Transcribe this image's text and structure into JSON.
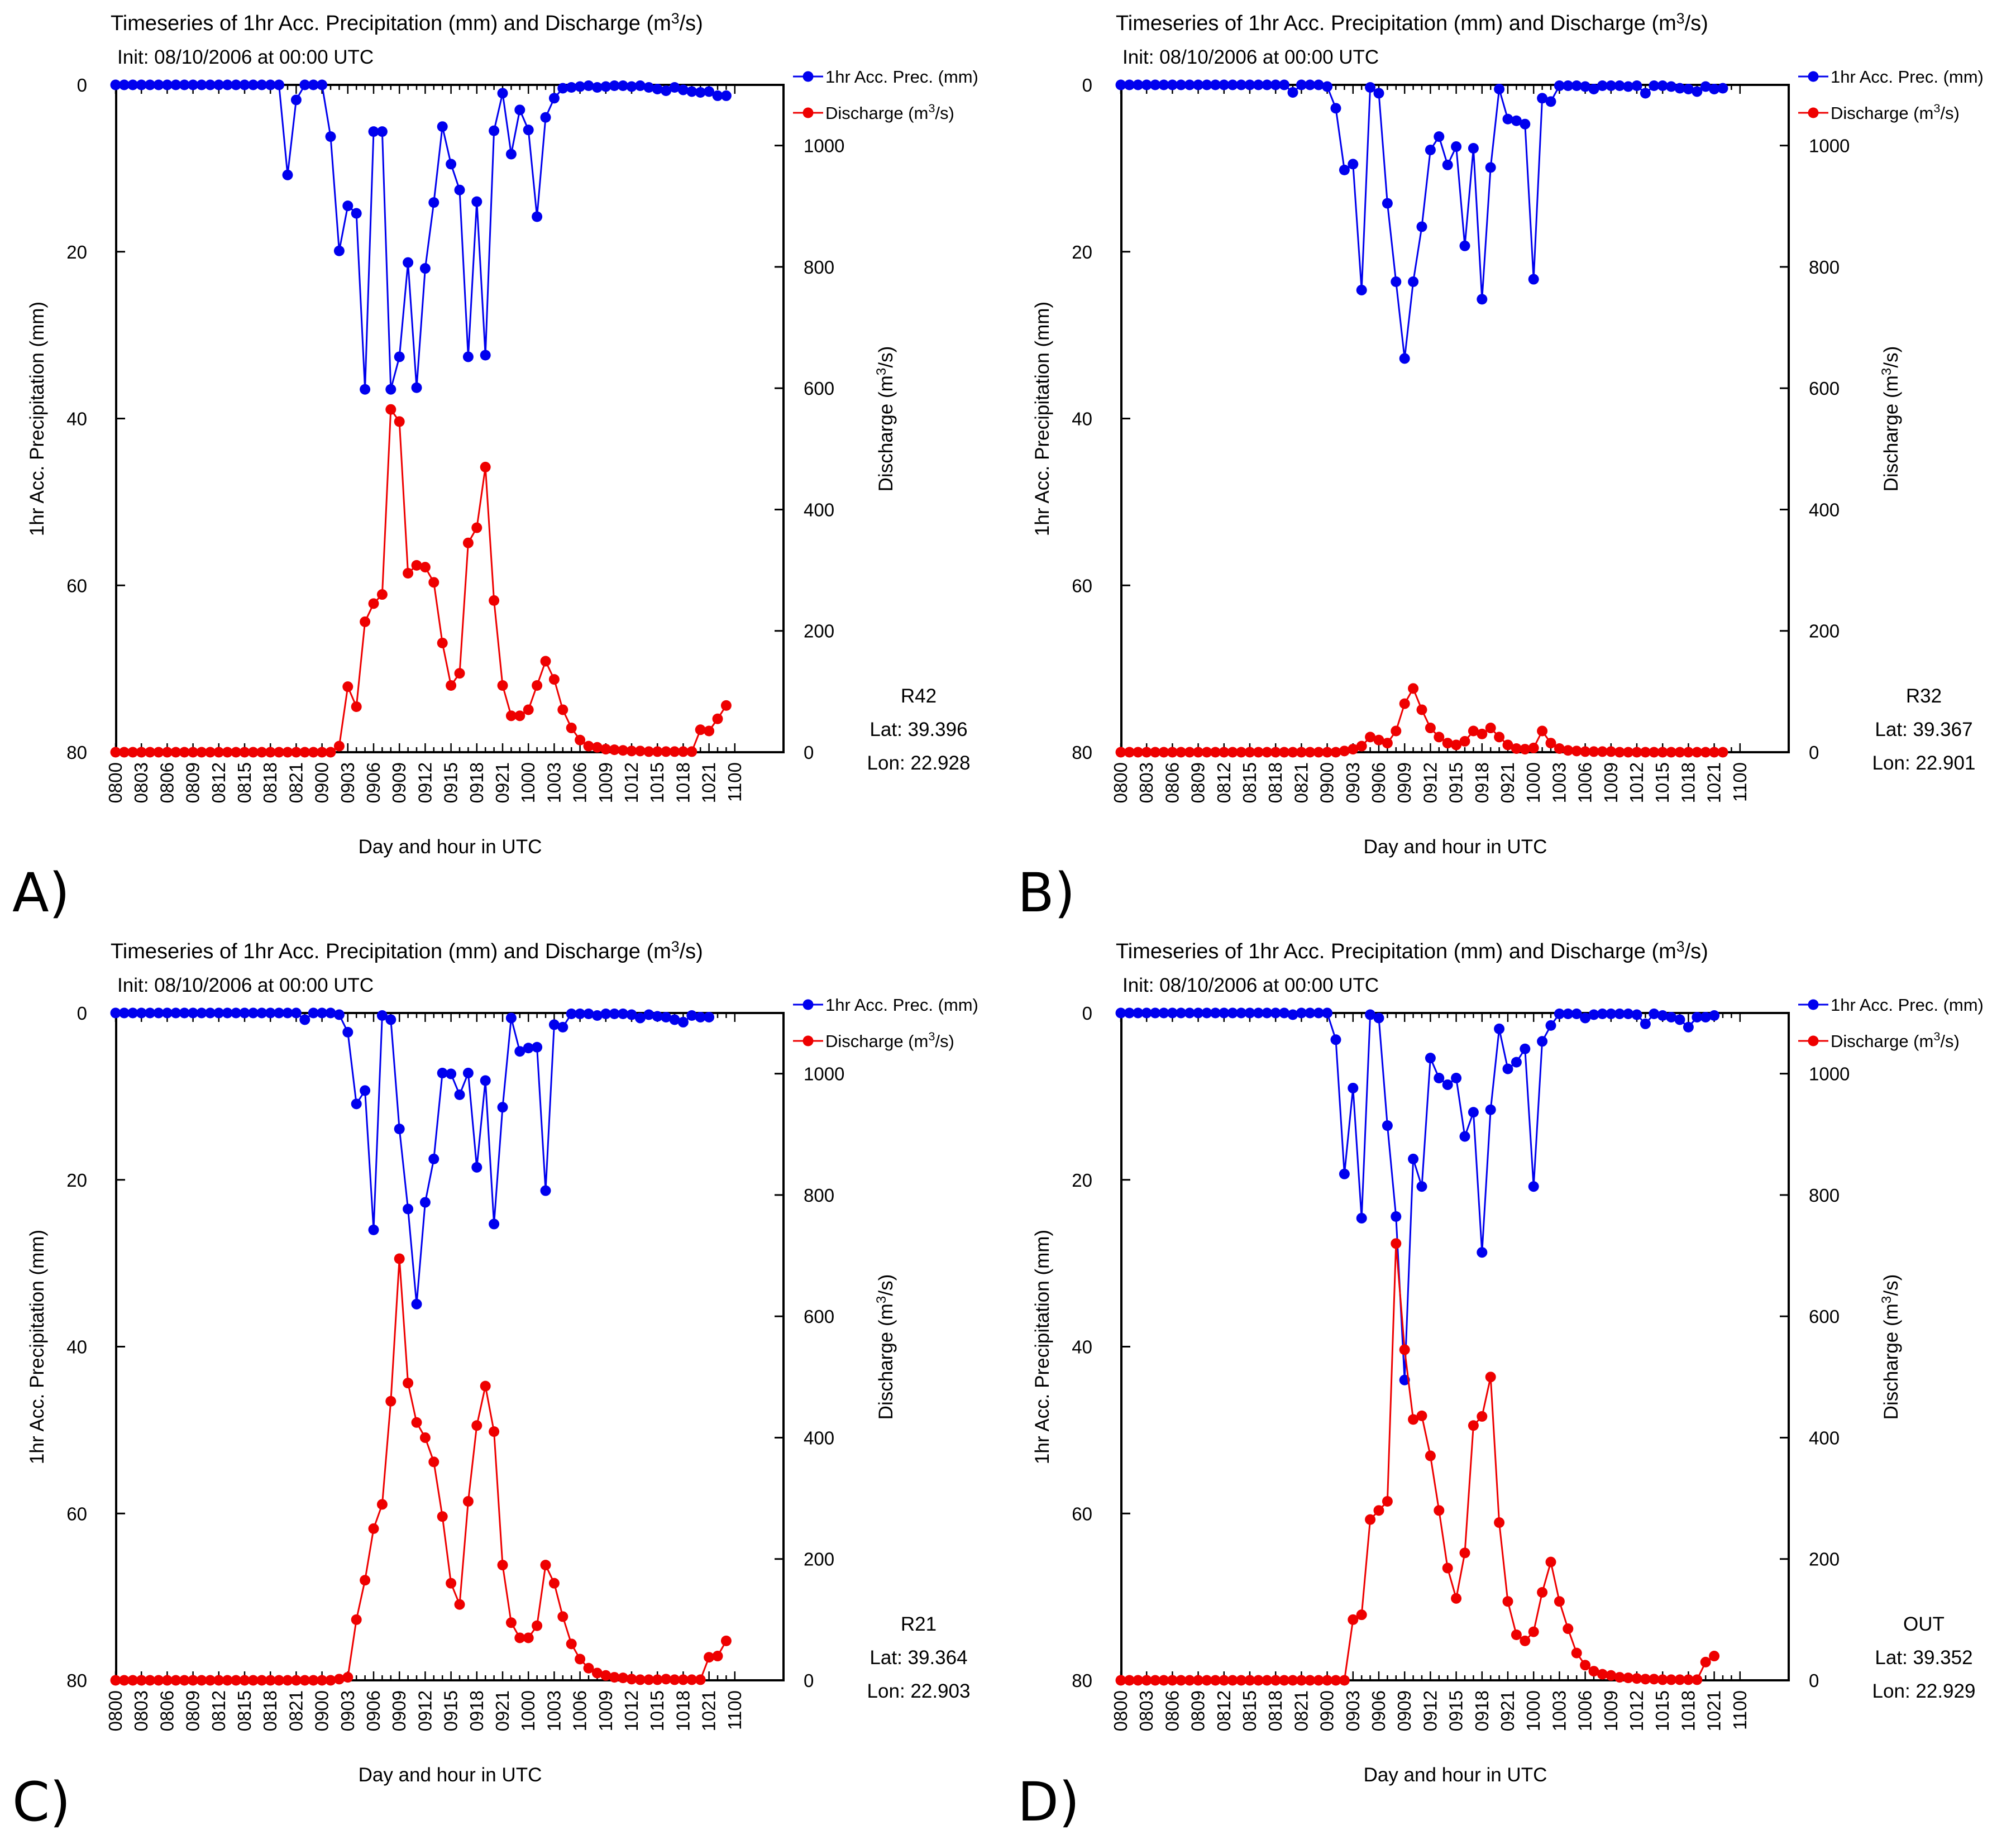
{
  "figure": {
    "panel_letters": [
      "A)",
      "B)",
      "C)",
      "D)"
    ]
  },
  "chart_data": [
    {
      "type": "line",
      "panel": "A)",
      "title": "Timeseries of 1hr Acc. Precipitation (mm) and Discharge (m3/s)",
      "subtitle": "Init: 08/10/2006 at 00:00 UTC",
      "xlabel": "Day and hour in UTC",
      "ylabel_left": "1hr Acc. Precipitation (mm)",
      "ylabel_right": "Discharge (m3/s)",
      "ylim_left": [
        80,
        0
      ],
      "ylim_right": [
        0,
        1100
      ],
      "yticks_left": [
        0,
        20,
        40,
        60,
        80
      ],
      "yticks_right": [
        0,
        200,
        400,
        600,
        800,
        1000
      ],
      "x_tick_labels": [
        "0800",
        "0803",
        "0806",
        "0809",
        "0812",
        "0815",
        "0818",
        "0821",
        "0900",
        "0903",
        "0906",
        "0909",
        "0912",
        "0915",
        "0918",
        "0921",
        "1000",
        "1003",
        "1006",
        "1009",
        "1012",
        "1015",
        "1018",
        "1021",
        "1100"
      ],
      "legend": [
        "1hr Acc. Prec. (mm)",
        "Discharge (m3/s)"
      ],
      "station": "R42",
      "lat": "Lat: 39.396",
      "lon": "Lon: 22.928",
      "series": [
        {
          "name": "1hr Acc. Prec. (mm)",
          "color": "#0000ee",
          "axis": "left",
          "values": [
            0,
            0,
            0,
            0,
            0,
            0,
            0,
            0,
            0,
            0,
            0,
            0,
            0,
            0,
            0,
            0,
            0,
            0,
            0,
            0,
            10.8,
            1.8,
            0,
            0,
            0,
            6.2,
            19.9,
            14.5,
            15.4,
            36.5,
            5.6,
            5.6,
            36.5,
            32.6,
            21.3,
            36.3,
            22,
            14.1,
            5,
            9.5,
            12.6,
            32.6,
            14,
            32.4,
            5.5,
            1,
            8.3,
            3,
            5.4,
            15.8,
            3.9,
            1.6,
            0.4,
            0.3,
            0.2,
            0.1,
            0.3,
            0.2,
            0.1,
            0.1,
            0.2,
            0.1,
            0.3,
            0.5,
            0.7,
            0.3,
            0.6,
            0.8,
            0.9,
            0.8,
            1.3,
            1.3
          ]
        },
        {
          "name": "Discharge (m3/s)",
          "color": "#ee0000",
          "axis": "right",
          "values": [
            0,
            0,
            0,
            0,
            0,
            0,
            0,
            0,
            0,
            0,
            0,
            0,
            0,
            0,
            0,
            0,
            0,
            0,
            0,
            0,
            0,
            0,
            0,
            0,
            0,
            0,
            10,
            108,
            75,
            215,
            245,
            260,
            565,
            545,
            295,
            308,
            305,
            280,
            180,
            110,
            130,
            345,
            370,
            470,
            250,
            110,
            60,
            60,
            70,
            110,
            150,
            120,
            70,
            40,
            20,
            10,
            8,
            5,
            4,
            3,
            2,
            2,
            1,
            1,
            1,
            1,
            1,
            1,
            37,
            35,
            55,
            77
          ]
        }
      ]
    },
    {
      "type": "line",
      "panel": "B)",
      "title": "Timeseries of 1hr Acc. Precipitation (mm) and Discharge (m3/s)",
      "subtitle": "Init: 08/10/2006 at 00:00 UTC",
      "xlabel": "Day and hour in UTC",
      "ylabel_left": "1hr Acc. Precipitation (mm)",
      "ylabel_right": "Discharge (m3/s)",
      "ylim_left": [
        80,
        0
      ],
      "ylim_right": [
        0,
        1100
      ],
      "yticks_left": [
        0,
        20,
        40,
        60,
        80
      ],
      "yticks_right": [
        0,
        200,
        400,
        600,
        800,
        1000
      ],
      "x_tick_labels": [
        "0800",
        "0803",
        "0806",
        "0809",
        "0812",
        "0815",
        "0818",
        "0821",
        "0900",
        "0903",
        "0906",
        "0909",
        "0912",
        "0915",
        "0918",
        "0921",
        "1000",
        "1003",
        "1006",
        "1009",
        "1012",
        "1015",
        "1018",
        "1021",
        "1100"
      ],
      "legend": [
        "1hr Acc. Prec. (mm)",
        "Discharge (m3/s)"
      ],
      "station": "R32",
      "lat": "Lat: 39.367",
      "lon": "Lon: 22.901",
      "series": [
        {
          "name": "1hr Acc. Prec. (mm)",
          "color": "#0000ee",
          "axis": "left",
          "values": [
            0,
            0,
            0,
            0,
            0,
            0,
            0,
            0,
            0,
            0,
            0,
            0,
            0,
            0,
            0,
            0,
            0,
            0,
            0,
            0,
            0.9,
            0,
            0,
            0,
            0.2,
            2.8,
            10.2,
            9.5,
            24.6,
            0.3,
            1,
            14.2,
            23.6,
            32.8,
            23.6,
            17,
            7.8,
            6.2,
            9.6,
            7.4,
            19.3,
            7.6,
            25.7,
            9.9,
            0.5,
            4.1,
            4.3,
            4.7,
            23.3,
            1.6,
            2,
            0.1,
            0.1,
            0.1,
            0.2,
            0.5,
            0.1,
            0.1,
            0.1,
            0.2,
            0.1,
            1,
            0.1,
            0.1,
            0.2,
            0.4,
            0.5,
            0.8,
            0.2,
            0.5,
            0.4
          ]
        },
        {
          "name": "Discharge (m3/s)",
          "color": "#ee0000",
          "axis": "right",
          "values": [
            0,
            0,
            0,
            0,
            0,
            0,
            0,
            0,
            0,
            0,
            0,
            0,
            0,
            0,
            0,
            0,
            0,
            0,
            0,
            0,
            0,
            0,
            0,
            0,
            0,
            0,
            2,
            5,
            10,
            25,
            20,
            15,
            35,
            80,
            105,
            70,
            40,
            25,
            15,
            12,
            18,
            35,
            30,
            40,
            25,
            12,
            6,
            5,
            7,
            35,
            15,
            6,
            3,
            2,
            1,
            1,
            1,
            1,
            0,
            0,
            0,
            0,
            0,
            0,
            0,
            0,
            0,
            0,
            0,
            0,
            0
          ]
        }
      ]
    },
    {
      "type": "line",
      "panel": "C)",
      "title": "Timeseries of 1hr Acc. Precipitation (mm) and Discharge (m3/s)",
      "subtitle": "Init: 08/10/2006 at 00:00 UTC",
      "xlabel": "Day and hour in UTC",
      "ylabel_left": "1hr Acc. Precipitation (mm)",
      "ylabel_right": "Discharge (m3/s)",
      "ylim_left": [
        80,
        0
      ],
      "ylim_right": [
        0,
        1100
      ],
      "yticks_left": [
        0,
        20,
        40,
        60,
        80
      ],
      "yticks_right": [
        0,
        200,
        400,
        600,
        800,
        1000
      ],
      "x_tick_labels": [
        "0800",
        "0803",
        "0806",
        "0809",
        "0812",
        "0815",
        "0818",
        "0821",
        "0900",
        "0903",
        "0906",
        "0909",
        "0912",
        "0915",
        "0918",
        "0921",
        "1000",
        "1003",
        "1006",
        "1009",
        "1012",
        "1015",
        "1018",
        "1021",
        "1100"
      ],
      "legend": [
        "1hr Acc. Prec. (mm)",
        "Discharge (m3/s)"
      ],
      "station": "R21",
      "lat": "Lat: 39.364",
      "lon": "Lon: 22.903",
      "series": [
        {
          "name": "1hr Acc. Prec. (mm)",
          "color": "#0000ee",
          "axis": "left",
          "values": [
            0,
            0,
            0,
            0,
            0,
            0,
            0,
            0,
            0,
            0,
            0,
            0,
            0,
            0,
            0,
            0,
            0,
            0,
            0,
            0,
            0,
            0,
            0.8,
            0,
            0,
            0,
            0.2,
            2.3,
            10.9,
            9.3,
            26,
            0.3,
            0.8,
            13.9,
            23.5,
            34.9,
            22.7,
            17.5,
            7.2,
            7.3,
            9.8,
            7.2,
            18.5,
            8.1,
            25.3,
            11.3,
            0.6,
            4.6,
            4.2,
            4.1,
            21.3,
            1.4,
            1.7,
            0.1,
            0.1,
            0.1,
            0.3,
            0.1,
            0.1,
            0.1,
            0.2,
            0.6,
            0.2,
            0.4,
            0.5,
            0.8,
            1.1,
            0.3,
            0.5,
            0.5
          ]
        },
        {
          "name": "Discharge (m3/s)",
          "color": "#ee0000",
          "axis": "right",
          "values": [
            0,
            0,
            0,
            0,
            0,
            0,
            0,
            0,
            0,
            0,
            0,
            0,
            0,
            0,
            0,
            0,
            0,
            0,
            0,
            0,
            0,
            0,
            0,
            0,
            0,
            0,
            2,
            5,
            100,
            165,
            250,
            290,
            460,
            695,
            490,
            425,
            400,
            360,
            270,
            160,
            125,
            295,
            420,
            485,
            410,
            190,
            95,
            70,
            70,
            90,
            190,
            160,
            105,
            60,
            35,
            20,
            12,
            8,
            5,
            4,
            2,
            1,
            1,
            1,
            2,
            1,
            1,
            1,
            1,
            38,
            40,
            65
          ]
        }
      ]
    },
    {
      "type": "line",
      "panel": "D)",
      "title": "Timeseries of 1hr Acc. Precipitation (mm) and Discharge (m3/s)",
      "subtitle": "Init: 08/10/2006 at 00:00 UTC",
      "xlabel": "Day and hour in UTC",
      "ylabel_left": "1hr Acc. Precipitation (mm)",
      "ylabel_right": "Discharge (m3/s)",
      "ylim_left": [
        80,
        0
      ],
      "ylim_right": [
        0,
        1100
      ],
      "yticks_left": [
        0,
        20,
        40,
        60,
        80
      ],
      "yticks_right": [
        0,
        200,
        400,
        600,
        800,
        1000
      ],
      "x_tick_labels": [
        "0800",
        "0803",
        "0806",
        "0809",
        "0812",
        "0815",
        "0818",
        "0821",
        "0900",
        "0903",
        "0906",
        "0909",
        "0912",
        "0915",
        "0918",
        "0921",
        "1000",
        "1003",
        "1006",
        "1009",
        "1012",
        "1015",
        "1018",
        "1021",
        "1100"
      ],
      "legend": [
        "1hr Acc. Prec. (mm)",
        "Discharge (m3/s)"
      ],
      "station": "OUT",
      "lat": "Lat: 39.352",
      "lon": "Lon: 22.929",
      "series": [
        {
          "name": "1hr Acc. Prec. (mm)",
          "color": "#0000ee",
          "axis": "left",
          "values": [
            0,
            0,
            0,
            0,
            0,
            0,
            0,
            0,
            0,
            0,
            0,
            0,
            0,
            0,
            0,
            0,
            0,
            0,
            0,
            0,
            0.2,
            0,
            0,
            0,
            0,
            3.2,
            19.3,
            9,
            24.6,
            0.2,
            0.6,
            13.5,
            24.4,
            44,
            17.5,
            20.8,
            5.4,
            7.8,
            8.6,
            7.8,
            14.8,
            11.9,
            28.7,
            11.6,
            1.9,
            6.7,
            5.9,
            4.3,
            20.8,
            3.4,
            1.5,
            0.1,
            0.1,
            0.1,
            0.6,
            0.2,
            0.1,
            0.1,
            0.1,
            0.1,
            0.2,
            1.3,
            0.1,
            0.3,
            0.5,
            0.8,
            1.7,
            0.5,
            0.5,
            0.3
          ]
        },
        {
          "name": "Discharge (m3/s)",
          "color": "#ee0000",
          "axis": "right",
          "values": [
            0,
            0,
            0,
            0,
            0,
            0,
            0,
            0,
            0,
            0,
            0,
            0,
            0,
            0,
            0,
            0,
            0,
            0,
            0,
            0,
            0,
            0,
            0,
            0,
            0,
            0,
            0,
            100,
            108,
            265,
            280,
            295,
            720,
            545,
            430,
            436,
            370,
            280,
            185,
            135,
            210,
            420,
            435,
            500,
            260,
            130,
            75,
            65,
            80,
            145,
            195,
            130,
            85,
            45,
            25,
            15,
            10,
            8,
            5,
            4,
            3,
            2,
            2,
            1,
            1,
            1,
            1,
            1,
            30,
            40
          ]
        }
      ]
    }
  ]
}
